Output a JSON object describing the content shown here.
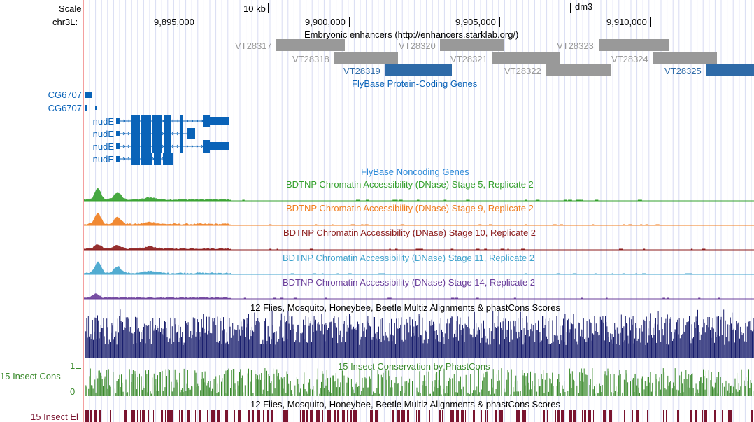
{
  "ruler": {
    "scale_label": "Scale",
    "chrom_label": "chr3L:",
    "scale_bar_text": "10 kb",
    "assembly": "dm3",
    "positions": [
      "9,895,000",
      "9,900,000",
      "9,905,000",
      "9,910,000"
    ]
  },
  "tracks": {
    "enhancers": {
      "title": "Embryonic enhancers (http://enhancers.starklab.org/)",
      "items": [
        {
          "label": "VT28317",
          "color": "#999999"
        },
        {
          "label": "VT28318",
          "color": "#999999"
        },
        {
          "label": "VT28319",
          "color": "#2f6ba8"
        },
        {
          "label": "VT28320",
          "color": "#999999"
        },
        {
          "label": "VT28321",
          "color": "#999999"
        },
        {
          "label": "VT28322",
          "color": "#999999"
        },
        {
          "label": "VT28323",
          "color": "#999999"
        },
        {
          "label": "VT28324",
          "color": "#999999"
        },
        {
          "label": "VT28325",
          "color": "#2f6ba8"
        }
      ]
    },
    "flybase_coding": {
      "title": "FlyBase Protein-Coding Genes",
      "color": "#0a63b8",
      "genes": [
        "CG6707",
        "CG6707",
        "nudE",
        "nudE",
        "nudE",
        "nudE"
      ]
    },
    "flybase_noncoding": {
      "title": "FlyBase Noncoding Genes",
      "color": "#2a88d8"
    },
    "dnase": [
      {
        "title": "BDTNP Chromatin Accessibility (DNase) Stage 5, Replicate 2",
        "color": "#33a02c"
      },
      {
        "title": "BDTNP Chromatin Accessibility (DNase) Stage 9, Replicate 2",
        "color": "#f07d1e"
      },
      {
        "title": "BDTNP Chromatin Accessibility (DNase) Stage 10, Replicate 2",
        "color": "#8b1a1a"
      },
      {
        "title": "BDTNP Chromatin Accessibility (DNase) Stage 11, Replicate 2",
        "color": "#3fa3cc"
      },
      {
        "title": "BDTNP Chromatin Accessibility (DNase) Stage 14, Replicate 2",
        "color": "#6a3d9a"
      }
    ],
    "multiz": {
      "title": "12 Flies, Mosquito, Honeybee, Beetle Multiz Alignments & phastCons Scores",
      "color": "#1a1f6e"
    },
    "phastcons": {
      "title": "15 Insect Conservation by PhastCons",
      "left_label": "15 Insect Cons",
      "ymax": "1",
      "ymin": "0",
      "color": "#3a8a2c"
    },
    "multiz2": {
      "title": "12 Flies, Mosquito, Honeybee, Beetle Multiz Alignments & phastCons Scores"
    },
    "elements": {
      "left_label": "15 Insect El",
      "color": "#7a1530"
    }
  }
}
